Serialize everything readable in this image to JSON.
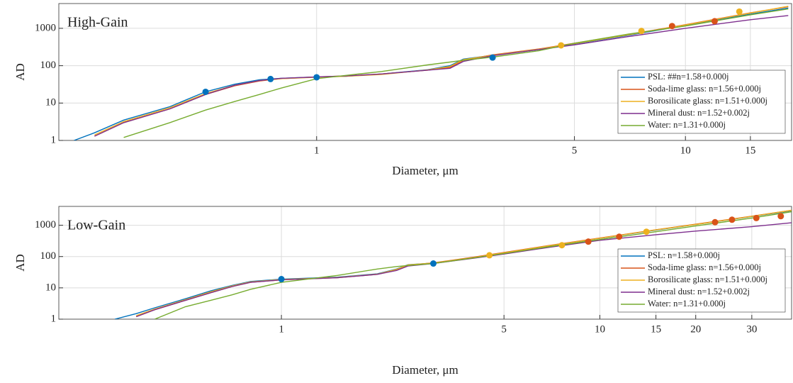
{
  "chart_data": [
    {
      "type": "line",
      "title": "High-Gain",
      "xlabel": "Diameter, μm",
      "ylabel": "AD",
      "xscale": "log",
      "yscale": "log",
      "grid": true,
      "legend": "lower right",
      "xlim": [
        0.2,
        19.4
      ],
      "ylim": [
        1,
        4600
      ],
      "xticks": [
        1,
        5,
        10,
        15
      ],
      "yticks": [
        1,
        10,
        100,
        1000
      ],
      "x": [
        0.22,
        0.25,
        0.3,
        0.4,
        0.5,
        0.6,
        0.7,
        0.8,
        1,
        1.2,
        1.5,
        2,
        2.3,
        2.5,
        3,
        4,
        5,
        7,
        10,
        15,
        19
      ],
      "series": [
        {
          "name": "PSL: ##n=1.58+0.000j",
          "color": "#0072bd",
          "values": [
            1,
            1.6,
            3.5,
            8,
            20,
            32,
            42,
            46,
            50,
            52,
            60,
            78,
            100,
            150,
            190,
            270,
            380,
            650,
            1200,
            2400,
            3500
          ]
        },
        {
          "name": "Soda-lime glass: n=1.56+0.000j",
          "color": "#d95319",
          "values": [
            null,
            1.3,
            3,
            7,
            17,
            29,
            39,
            45,
            50,
            53,
            60,
            76,
            90,
            140,
            195,
            280,
            400,
            680,
            1250,
            2600,
            3800
          ]
        },
        {
          "name": "Borosilicate glass: n=1.51+0.000j",
          "color": "#edb120",
          "values": [
            null,
            1.4,
            3.2,
            7.5,
            18,
            30,
            40,
            45,
            49,
            52,
            58,
            77,
            95,
            145,
            190,
            275,
            390,
            670,
            1230,
            2550,
            3900
          ]
        },
        {
          "name": "Mineral dust: n=1.52+0.002j",
          "color": "#7e2f8e",
          "values": [
            null,
            1.3,
            3,
            7,
            17,
            30,
            40,
            46,
            50,
            53,
            60,
            76,
            85,
            130,
            185,
            270,
            360,
            600,
            1000,
            1700,
            2200
          ]
        },
        {
          "name": "Water: n=1.31+0.000j",
          "color": "#77ac30",
          "values": [
            null,
            null,
            1.2,
            3,
            6.5,
            11,
            17,
            25,
            45,
            55,
            70,
            105,
            125,
            140,
            170,
            250,
            400,
            700,
            1150,
            2300,
            3300
          ]
        }
      ],
      "markers": [
        {
          "color": "#0072bd",
          "x": [
            0.5,
            0.75,
            1,
            3
          ],
          "y": [
            20,
            44,
            49,
            165
          ]
        },
        {
          "color": "#edb120",
          "x": [
            4.6,
            7.6,
            14
          ],
          "y": [
            350,
            850,
            2800
          ]
        },
        {
          "color": "#d95319",
          "x": [
            9.2,
            12
          ],
          "y": [
            1150,
            1550
          ]
        }
      ]
    },
    {
      "type": "line",
      "title": "Low-Gain",
      "xlabel": "Diameter, μm",
      "ylabel": "AD",
      "xscale": "log",
      "yscale": "log",
      "grid": true,
      "legend": "lower right",
      "xlim": [
        0.2,
        40
      ],
      "ylim": [
        1,
        4000
      ],
      "xticks": [
        1,
        5,
        10,
        15,
        20,
        30
      ],
      "yticks": [
        1,
        10,
        100,
        1000
      ],
      "x": [
        0.3,
        0.35,
        0.4,
        0.5,
        0.6,
        0.7,
        0.8,
        1,
        1.5,
        2,
        2.3,
        2.5,
        3,
        4,
        5,
        7,
        10,
        15,
        20,
        30,
        40
      ],
      "series": [
        {
          "name": "PSL: n=1.58+0.000j",
          "color": "#0072bd",
          "values": [
            1,
            1.5,
            2.3,
            4.5,
            8,
            12,
            16,
            19,
            22,
            28,
            40,
            55,
            62,
            90,
            130,
            220,
            380,
            700,
            1050,
            1900,
            2900
          ]
        },
        {
          "name": "Soda-lime glass: n=1.56+0.000j",
          "color": "#d95319",
          "values": [
            null,
            1.2,
            2,
            4,
            7,
            11,
            15,
            18,
            21,
            27,
            38,
            53,
            63,
            95,
            135,
            230,
            390,
            720,
            1080,
            1950,
            3000
          ]
        },
        {
          "name": "Borosilicate glass: n=1.51+0.000j",
          "color": "#edb120",
          "values": [
            null,
            1.3,
            2.1,
            4.2,
            7.5,
            11.5,
            15.5,
            18.5,
            21.5,
            27.5,
            39,
            54,
            62,
            92,
            132,
            225,
            385,
            710,
            1060,
            1920,
            3000
          ]
        },
        {
          "name": "Mineral dust: n=1.52+0.002j",
          "color": "#7e2f8e",
          "values": [
            null,
            1.2,
            2,
            4,
            7,
            11,
            15,
            18,
            21,
            27,
            36,
            50,
            60,
            88,
            120,
            200,
            330,
            500,
            650,
            900,
            1200
          ]
        },
        {
          "name": "Water: n=1.31+0.000j",
          "color": "#77ac30",
          "values": [
            null,
            null,
            1,
            2.5,
            4,
            6,
            9,
            15,
            25,
            40,
            48,
            52,
            60,
            90,
            125,
            210,
            350,
            620,
            950,
            1700,
            2700
          ]
        }
      ],
      "markers": [
        {
          "color": "#0072bd",
          "x": [
            1,
            3
          ],
          "y": [
            19,
            60
          ]
        },
        {
          "color": "#edb120",
          "x": [
            4.5,
            7.6,
            14
          ],
          "y": [
            110,
            230,
            620
          ]
        },
        {
          "color": "#d95319",
          "x": [
            9.2,
            11.5,
            23,
            26,
            31,
            37
          ],
          "y": [
            300,
            430,
            1250,
            1500,
            1700,
            1950
          ]
        }
      ]
    }
  ]
}
